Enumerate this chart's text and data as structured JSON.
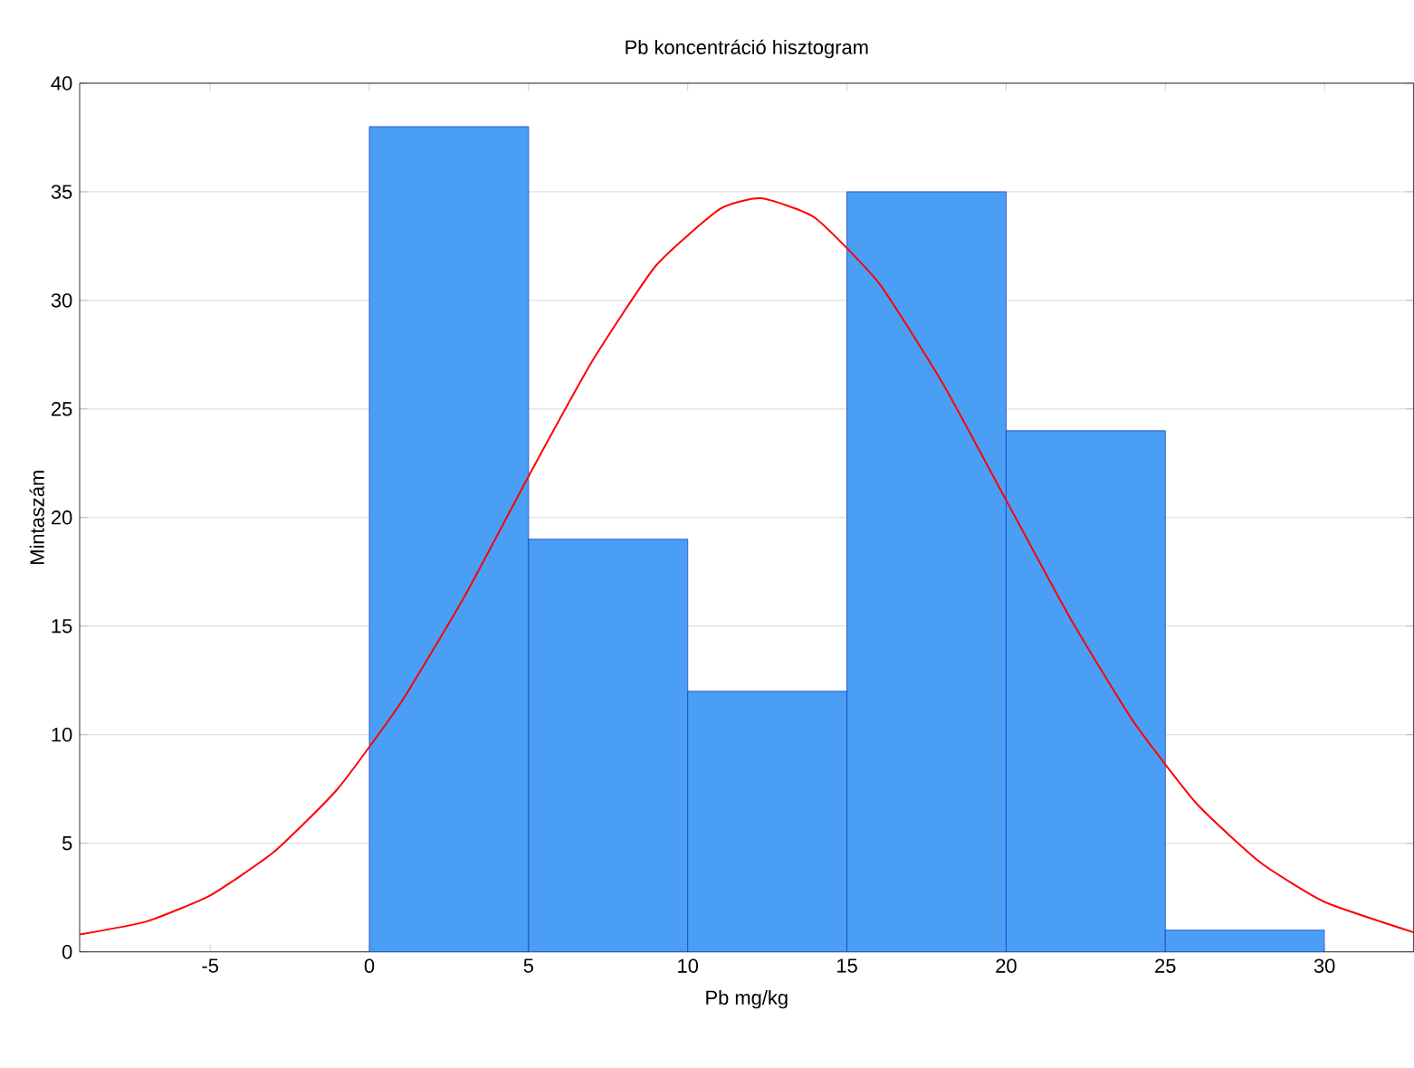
{
  "chart_data": {
    "type": "histogram",
    "title": "Pb koncentráció hisztogram",
    "xlabel": "Pb mg/kg",
    "ylabel": "Mintaszám",
    "series": [
      {
        "color": "#4a9ff5",
        "bins": [
          0,
          5,
          10,
          15,
          20,
          25,
          30
        ],
        "values": [
          38,
          19,
          12,
          35,
          24,
          1
        ]
      },
      {
        "type": "line",
        "color": "#ff0000",
        "x": [
          -9.1,
          -7,
          -5,
          -3,
          -1,
          1,
          3,
          5,
          7,
          9,
          11,
          12.3,
          14,
          16,
          18,
          20,
          22,
          24,
          26,
          28,
          30,
          32.8
        ],
        "values": [
          0.8,
          1.4,
          2.6,
          4.6,
          7.5,
          11.5,
          16.4,
          21.9,
          27.2,
          31.6,
          34.2,
          34.7,
          33.8,
          30.8,
          26.2,
          20.8,
          15.4,
          10.6,
          6.8,
          4.1,
          2.3,
          0.9
        ]
      }
    ],
    "xlim": [
      -9.1,
      32.8
    ],
    "ylim": [
      0,
      40
    ],
    "xticks": [
      -5,
      0,
      5,
      10,
      15,
      20,
      25,
      30
    ],
    "yticks": [
      0,
      5,
      10,
      15,
      20,
      25,
      30,
      35,
      40
    ],
    "grid": "y"
  }
}
